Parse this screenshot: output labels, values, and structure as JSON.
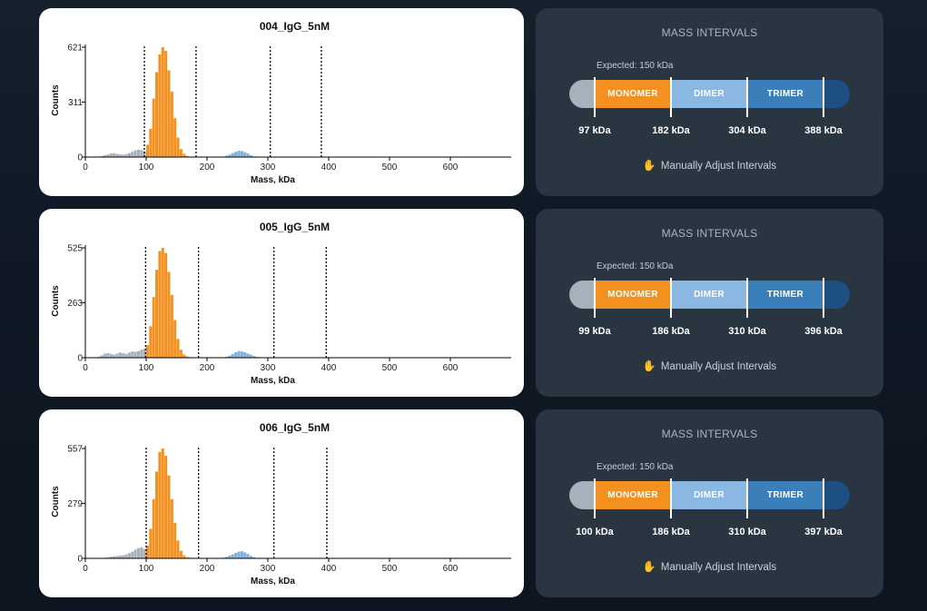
{
  "colors": {
    "monomer": "#f3901f",
    "background_counts": "#a7b1bc",
    "dimer_counts": "#7fb0dc",
    "outside": "#a7b1bc",
    "dimer": "#8ab8e2",
    "trimer": "#3a7fba",
    "beyond": "#1d4f82"
  },
  "panels": [
    {
      "chart_data": {
        "type": "bar",
        "title": "004_IgG_5nM",
        "xlabel": "Mass, kDa",
        "ylabel": "Counts",
        "xlim": [
          0,
          700
        ],
        "ylim": [
          0,
          621
        ],
        "xticks": [
          "0",
          "100",
          "200",
          "300",
          "400",
          "500",
          "600"
        ],
        "yticks": [
          "0",
          "311",
          "621"
        ],
        "bin_width": 5,
        "series": [
          {
            "x": [
              20,
              25,
              30,
              35,
              40,
              45,
              50,
              55,
              60,
              65,
              70,
              75,
              80,
              85,
              90,
              95
            ],
            "values": [
              3,
              6,
              10,
              15,
              20,
              22,
              18,
              15,
              13,
              17,
              22,
              30,
              38,
              42,
              40,
              32
            ]
          },
          {
            "x": [
              100,
              105,
              110,
              115,
              120,
              125,
              130,
              135,
              140,
              145,
              150,
              155,
              160,
              165,
              170,
              175,
              180
            ],
            "values": [
              70,
              160,
              330,
              480,
              580,
              621,
              600,
              490,
              370,
              220,
              110,
              45,
              18,
              7,
              3,
              1,
              1
            ]
          },
          {
            "x": [
              225,
              230,
              235,
              240,
              245,
              250,
              255,
              260,
              265,
              270,
              275
            ],
            "values": [
              3,
              8,
              14,
              22,
              30,
              36,
              34,
              28,
              20,
              10,
              4
            ]
          }
        ],
        "vlines": [
          97,
          182,
          304,
          388
        ]
      },
      "intervals": {
        "title": "MASS INTERVALS",
        "expected": "Expected: 150 kDa",
        "segments": [
          "MONOMER",
          "DIMER",
          "TRIMER"
        ],
        "values": [
          "97 kDa",
          "182 kDa",
          "304 kDa",
          "388 kDa"
        ],
        "adjust_label": "Manually Adjust Intervals",
        "adjust_icon": "hand-icon"
      }
    },
    {
      "chart_data": {
        "type": "bar",
        "title": "005_IgG_5nM",
        "xlabel": "Mass, kDa",
        "ylabel": "Counts",
        "xlim": [
          0,
          700
        ],
        "ylim": [
          0,
          525
        ],
        "xticks": [
          "0",
          "100",
          "200",
          "300",
          "400",
          "500",
          "600"
        ],
        "yticks": [
          "0",
          "263",
          "525"
        ],
        "bin_width": 5,
        "series": [
          {
            "x": [
              20,
              25,
              30,
              35,
              40,
              45,
              50,
              55,
              60,
              65,
              70,
              75,
              80,
              85,
              90,
              95
            ],
            "values": [
              5,
              12,
              20,
              22,
              18,
              15,
              20,
              25,
              22,
              18,
              24,
              30,
              28,
              32,
              38,
              42
            ]
          },
          {
            "x": [
              100,
              105,
              110,
              115,
              120,
              125,
              130,
              135,
              140,
              145,
              150,
              155,
              160,
              165,
              170,
              175,
              180
            ],
            "values": [
              60,
              150,
              290,
              420,
              510,
              525,
              500,
              410,
              300,
              180,
              90,
              38,
              15,
              6,
              3,
              1,
              1
            ]
          },
          {
            "x": [
              230,
              235,
              240,
              245,
              250,
              255,
              260,
              265,
              270,
              275,
              280,
              285
            ],
            "values": [
              4,
              10,
              18,
              26,
              32,
              30,
              26,
              20,
              14,
              8,
              4,
              2
            ]
          }
        ],
        "vlines": [
          99,
          186,
          310,
          396
        ]
      },
      "intervals": {
        "title": "MASS INTERVALS",
        "expected": "Expected: 150 kDa",
        "segments": [
          "MONOMER",
          "DIMER",
          "TRIMER"
        ],
        "values": [
          "99 kDa",
          "186 kDa",
          "310 kDa",
          "396 kDa"
        ],
        "adjust_label": "Manually Adjust Intervals",
        "adjust_icon": "hand-icon"
      }
    },
    {
      "chart_data": {
        "type": "bar",
        "title": "006_IgG_5nM",
        "xlabel": "Mass, kDa",
        "ylabel": "Counts",
        "xlim": [
          0,
          700
        ],
        "ylim": [
          0,
          557
        ],
        "xticks": [
          "0",
          "100",
          "200",
          "300",
          "400",
          "500",
          "600"
        ],
        "yticks": [
          "0",
          "279",
          "557"
        ],
        "bin_width": 5,
        "series": [
          {
            "x": [
              30,
              35,
              40,
              45,
              50,
              55,
              60,
              65,
              70,
              75,
              80,
              85,
              90,
              95
            ],
            "values": [
              3,
              5,
              8,
              10,
              12,
              14,
              16,
              20,
              26,
              34,
              44,
              52,
              56,
              48
            ]
          },
          {
            "x": [
              100,
              105,
              110,
              115,
              120,
              125,
              130,
              135,
              140,
              145,
              150,
              155,
              160,
              165,
              170,
              175,
              180
            ],
            "values": [
              65,
              150,
              300,
              440,
              540,
              557,
              520,
              420,
              300,
              180,
              90,
              38,
              15,
              6,
              3,
              1,
              1
            ]
          },
          {
            "x": [
              225,
              230,
              235,
              240,
              245,
              250,
              255,
              260,
              265,
              270,
              275,
              280
            ],
            "values": [
              3,
              8,
              14,
              20,
              28,
              34,
              36,
              30,
              22,
              12,
              6,
              2
            ]
          }
        ],
        "vlines": [
          100,
          186,
          310,
          397
        ]
      },
      "intervals": {
        "title": "MASS INTERVALS",
        "expected": "Expected: 150 kDa",
        "segments": [
          "MONOMER",
          "DIMER",
          "TRIMER"
        ],
        "values": [
          "100 kDa",
          "186 kDa",
          "310 kDa",
          "397 kDa"
        ],
        "adjust_label": "Manually Adjust Intervals",
        "adjust_icon": "hand-icon"
      }
    }
  ]
}
